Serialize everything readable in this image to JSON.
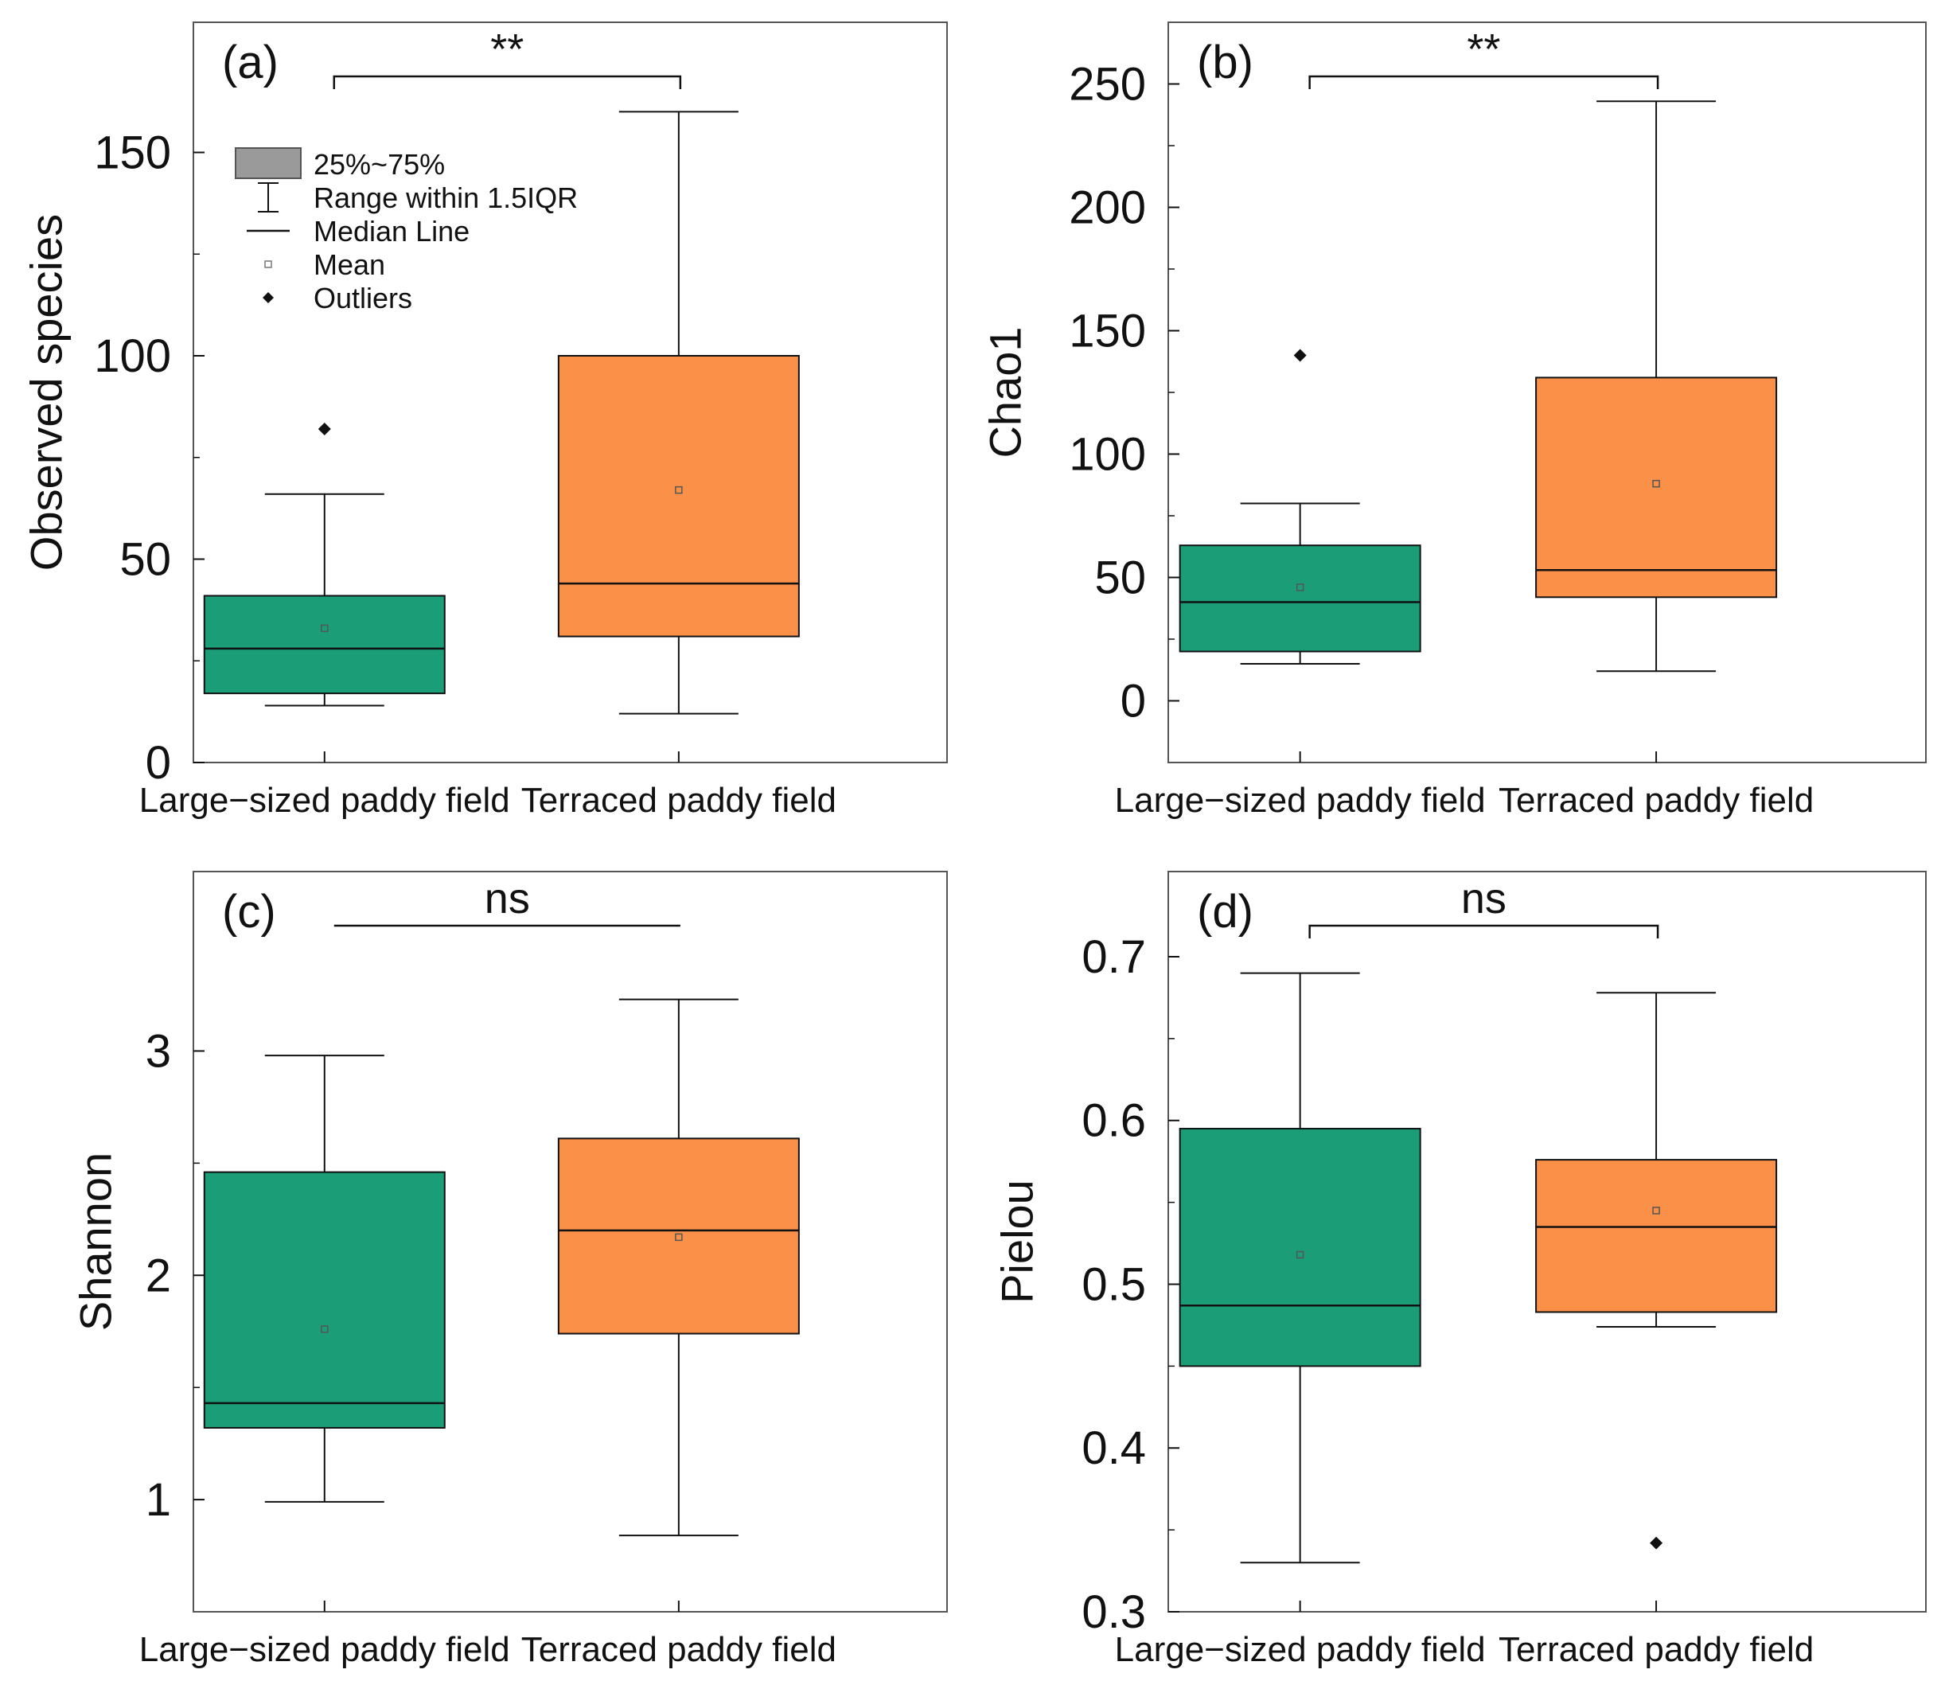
{
  "colors": {
    "large": "#1b9e77",
    "terraced": "#fb9148",
    "frame": "#555555",
    "ink": "#111111",
    "legend_box": "#9a9a9a"
  },
  "legend": {
    "items": [
      {
        "key": "box",
        "label": "25%~75%"
      },
      {
        "key": "whisker",
        "label": "Range within 1.5IQR"
      },
      {
        "key": "median",
        "label": "Median Line"
      },
      {
        "key": "mean",
        "label": "Mean"
      },
      {
        "key": "outlier",
        "label": "Outliers"
      }
    ]
  },
  "chart_data": [
    {
      "type": "box",
      "panel": "(a)",
      "ylabel": "Observed species",
      "categories": [
        "Large−sized paddy field",
        "Terraced paddy field"
      ],
      "yticks": [
        0,
        50,
        100,
        150
      ],
      "ylim": [
        0,
        182
      ],
      "significance": "**",
      "series": [
        {
          "name": "Large−sized paddy field",
          "whisker_low": 14,
          "q1": 17,
          "median": 28,
          "q3": 41,
          "whisker_high": 66,
          "mean": 33,
          "outliers": [
            82
          ]
        },
        {
          "name": "Terraced paddy field",
          "whisker_low": 12,
          "q1": 31,
          "median": 44,
          "q3": 100,
          "whisker_high": 160,
          "mean": 67,
          "outliers": []
        }
      ]
    },
    {
      "type": "box",
      "panel": "(b)",
      "ylabel": "Chao1",
      "categories": [
        "Large−sized paddy field",
        "Terraced paddy field"
      ],
      "yticks": [
        0,
        50,
        100,
        150,
        200,
        250
      ],
      "ylim": [
        -25,
        275
      ],
      "significance": "**",
      "series": [
        {
          "name": "Large−sized paddy field",
          "whisker_low": 15,
          "q1": 20,
          "median": 40,
          "q3": 63,
          "whisker_high": 80,
          "mean": 46,
          "outliers": [
            140
          ]
        },
        {
          "name": "Terraced paddy field",
          "whisker_low": 12,
          "q1": 42,
          "median": 53,
          "q3": 131,
          "whisker_high": 243,
          "mean": 88,
          "outliers": []
        }
      ]
    },
    {
      "type": "box",
      "panel": "(c)",
      "ylabel": "Shannon",
      "categories": [
        "Large−sized paddy field",
        "Terraced paddy field"
      ],
      "yticks": [
        1,
        2,
        3
      ],
      "ylim": [
        0.5,
        3.8
      ],
      "significance": "ns",
      "series": [
        {
          "name": "Large−sized paddy field",
          "whisker_low": 0.99,
          "q1": 1.32,
          "median": 1.43,
          "q3": 2.46,
          "whisker_high": 2.98,
          "mean": 1.76,
          "outliers": []
        },
        {
          "name": "Terraced paddy field",
          "whisker_low": 0.84,
          "q1": 1.74,
          "median": 2.2,
          "q3": 2.61,
          "whisker_high": 3.23,
          "mean": 2.17,
          "outliers": []
        }
      ]
    },
    {
      "type": "box",
      "panel": "(d)",
      "ylabel": "Pielou",
      "categories": [
        "Large−sized paddy field",
        "Terraced paddy field"
      ],
      "yticks": [
        0.3,
        0.4,
        0.5,
        0.6,
        0.7
      ],
      "ylim": [
        0.3,
        0.752
      ],
      "significance": "ns",
      "series": [
        {
          "name": "Large−sized paddy field",
          "whisker_low": 0.33,
          "q1": 0.45,
          "median": 0.487,
          "q3": 0.595,
          "whisker_high": 0.69,
          "mean": 0.518,
          "outliers": []
        },
        {
          "name": "Terraced paddy field",
          "whisker_low": 0.474,
          "q1": 0.483,
          "median": 0.535,
          "q3": 0.576,
          "whisker_high": 0.678,
          "mean": 0.545,
          "outliers": [
            0.342
          ]
        }
      ]
    }
  ]
}
